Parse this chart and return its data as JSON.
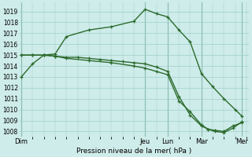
{
  "background_color": "#ceecea",
  "grid_color": "#9ececa",
  "vline_color": "#5a9a7a",
  "line_color": "#2d6b2d",
  "title": "Pression niveau de la mer( hPa )",
  "ylabel_ticks": [
    1008,
    1009,
    1010,
    1011,
    1012,
    1013,
    1014,
    1015,
    1016,
    1017,
    1018,
    1019
  ],
  "ylim": [
    1007.5,
    1019.8
  ],
  "xlim": [
    -0.1,
    10.1
  ],
  "day_labels": [
    "Dim",
    "Jeu",
    "Lun",
    "Mar",
    "Mer"
  ],
  "day_positions": [
    0,
    5.5,
    6.5,
    8.0,
    9.8
  ],
  "vline_positions": [
    0,
    5.5,
    6.5,
    8.0,
    9.8
  ],
  "series1_x": [
    0,
    0.5,
    1.0,
    1.5,
    2.0,
    3.0,
    4.0,
    5.0,
    5.5,
    6.0,
    6.5,
    7.0,
    7.5,
    8.0,
    8.5,
    9.0,
    9.5,
    9.8
  ],
  "series1_y": [
    1013.0,
    1014.2,
    1015.0,
    1015.1,
    1016.7,
    1017.3,
    1017.6,
    1018.1,
    1019.2,
    1018.8,
    1018.5,
    1017.3,
    1016.2,
    1013.3,
    1012.1,
    1011.0,
    1010.0,
    1009.4
  ],
  "series2_x": [
    0,
    0.5,
    1.0,
    1.5,
    2.0,
    2.5,
    3.0,
    3.5,
    4.0,
    4.5,
    5.0,
    5.5,
    6.0,
    6.5,
    7.0,
    7.5,
    8.0,
    8.3,
    8.6,
    9.0,
    9.4,
    9.8
  ],
  "series2_y": [
    1015.0,
    1015.0,
    1015.0,
    1014.9,
    1014.8,
    1014.8,
    1014.7,
    1014.6,
    1014.5,
    1014.4,
    1014.3,
    1014.2,
    1013.9,
    1013.5,
    1011.2,
    1009.5,
    1008.5,
    1008.2,
    1008.1,
    1008.0,
    1008.5,
    1008.8
  ],
  "series3_x": [
    0,
    0.5,
    1.0,
    1.5,
    2.0,
    3.0,
    4.0,
    5.0,
    5.5,
    6.0,
    6.5,
    7.0,
    7.5,
    8.0,
    8.3,
    8.6,
    9.0,
    9.4,
    9.8
  ],
  "series3_y": [
    1015.0,
    1015.0,
    1015.0,
    1014.9,
    1014.7,
    1014.5,
    1014.3,
    1014.0,
    1013.8,
    1013.5,
    1013.2,
    1010.8,
    1009.8,
    1008.6,
    1008.2,
    1008.0,
    1007.9,
    1008.3,
    1008.9
  ]
}
